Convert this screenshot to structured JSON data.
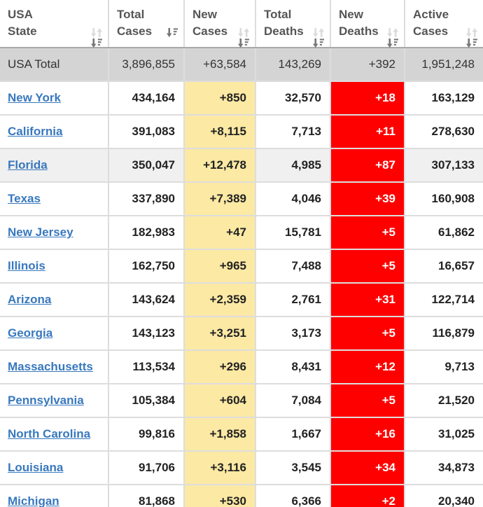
{
  "colors": {
    "link_blue": "#3878BE",
    "new_cases_bg": "#FCE9A4",
    "new_deaths_bg": "#FF0000",
    "new_deaths_text": "#FFFFFF",
    "total_row_bg": "#D4D4D4",
    "highlight_row_bg": "#F0F0F0",
    "header_text": "#555555",
    "body_text": "#222222",
    "grid_border": "#DDDDDD",
    "header_border": "#A9A9A9",
    "sort_inactive": "#DCDCDC",
    "sort_active": "#777777"
  },
  "table": {
    "columns": [
      {
        "line1": "USA",
        "line2": "State",
        "sort": "none"
      },
      {
        "line1": "Total",
        "line2": "Cases",
        "sort": "desc"
      },
      {
        "line1": "New",
        "line2": "Cases",
        "sort": "none"
      },
      {
        "line1": "Total",
        "line2": "Deaths",
        "sort": "none"
      },
      {
        "line1": "New",
        "line2": "Deaths",
        "sort": "none"
      },
      {
        "line1": "Active",
        "line2": "Cases",
        "sort": "none"
      }
    ],
    "total_row": {
      "state": "USA Total",
      "total_cases": "3,896,855",
      "new_cases": "+63,584",
      "total_deaths": "143,269",
      "new_deaths": "+392",
      "active_cases": "1,951,248"
    },
    "rows": [
      {
        "state": "New York",
        "total_cases": "434,164",
        "new_cases": "+850",
        "total_deaths": "32,570",
        "new_deaths": "+18",
        "active_cases": "163,129",
        "highlight": false
      },
      {
        "state": "California",
        "total_cases": "391,083",
        "new_cases": "+8,115",
        "total_deaths": "7,713",
        "new_deaths": "+11",
        "active_cases": "278,630",
        "highlight": false
      },
      {
        "state": "Florida",
        "total_cases": "350,047",
        "new_cases": "+12,478",
        "total_deaths": "4,985",
        "new_deaths": "+87",
        "active_cases": "307,133",
        "highlight": true
      },
      {
        "state": "Texas",
        "total_cases": "337,890",
        "new_cases": "+7,389",
        "total_deaths": "4,046",
        "new_deaths": "+39",
        "active_cases": "160,908",
        "highlight": false
      },
      {
        "state": "New Jersey",
        "total_cases": "182,983",
        "new_cases": "+47",
        "total_deaths": "15,781",
        "new_deaths": "+5",
        "active_cases": "61,862",
        "highlight": false
      },
      {
        "state": "Illinois",
        "total_cases": "162,750",
        "new_cases": "+965",
        "total_deaths": "7,488",
        "new_deaths": "+5",
        "active_cases": "16,657",
        "highlight": false
      },
      {
        "state": "Arizona",
        "total_cases": "143,624",
        "new_cases": "+2,359",
        "total_deaths": "2,761",
        "new_deaths": "+31",
        "active_cases": "122,714",
        "highlight": false
      },
      {
        "state": "Georgia",
        "total_cases": "143,123",
        "new_cases": "+3,251",
        "total_deaths": "3,173",
        "new_deaths": "+5",
        "active_cases": "116,879",
        "highlight": false
      },
      {
        "state": "Massachusetts",
        "total_cases": "113,534",
        "new_cases": "+296",
        "total_deaths": "8,431",
        "new_deaths": "+12",
        "active_cases": "9,713",
        "highlight": false
      },
      {
        "state": "Pennsylvania",
        "total_cases": "105,384",
        "new_cases": "+604",
        "total_deaths": "7,084",
        "new_deaths": "+5",
        "active_cases": "21,520",
        "highlight": false
      },
      {
        "state": "North Carolina",
        "total_cases": "99,816",
        "new_cases": "+1,858",
        "total_deaths": "1,667",
        "new_deaths": "+16",
        "active_cases": "31,025",
        "highlight": false
      },
      {
        "state": "Louisiana",
        "total_cases": "91,706",
        "new_cases": "+3,116",
        "total_deaths": "3,545",
        "new_deaths": "+34",
        "active_cases": "34,873",
        "highlight": false
      },
      {
        "state": "Michigan",
        "total_cases": "81,868",
        "new_cases": "+530",
        "total_deaths": "6,366",
        "new_deaths": "+2",
        "active_cases": "20,340",
        "highlight": false
      }
    ]
  }
}
